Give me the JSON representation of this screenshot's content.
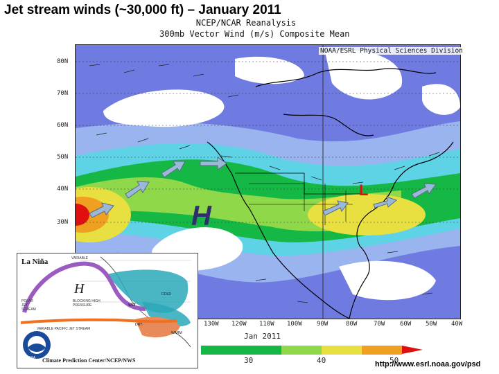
{
  "slide": {
    "title": "Jet stream winds (~30,000 ft) – January 2011",
    "url": "http://www.esrl.noaa.gov/psd"
  },
  "map": {
    "title_line1": "NCEP/NCAR Reanalysis",
    "title_line2": "300mb Vector Wind (m/s) Composite Mean",
    "credit": "NOAA/ESRL Physical Sciences Division",
    "date_label": "Jan 2011",
    "lat_labels": [
      "80N",
      "70N",
      "60N",
      "50N",
      "40N",
      "30N"
    ],
    "lon_labels": [
      "130W",
      "120W",
      "110W",
      "100W",
      "90W",
      "80W",
      "70W",
      "60W",
      "50W",
      "40W"
    ],
    "scale_ticks": [
      "30",
      "40",
      "50"
    ],
    "high_label": "H",
    "low_label": "L",
    "colors": {
      "low_wind": "#ffffff",
      "blue": "#6f7be0",
      "light_blue": "#9ab4f0",
      "cyan": "#5fd3e6",
      "green": "#16b845",
      "light_green": "#8fd84a",
      "yellow": "#e8e040",
      "orange": "#f0a020",
      "red": "#e01010"
    }
  },
  "inset": {
    "title": "La Niña",
    "labels": {
      "variable": "VARIABLE",
      "polar_jet": "POLAR JET STREAM",
      "blocking": "BLOCKING HIGH PRESSURE",
      "pacific_jet": "VARIABLE PACIFIC JET STREAM",
      "dry": "DRY",
      "wet": "WET",
      "warm": "WARM",
      "cold": "COLD"
    },
    "high_symbol": "H",
    "logo_text": "NOAA",
    "footer": "Climate Prediction Center/NCEP/NWS"
  }
}
